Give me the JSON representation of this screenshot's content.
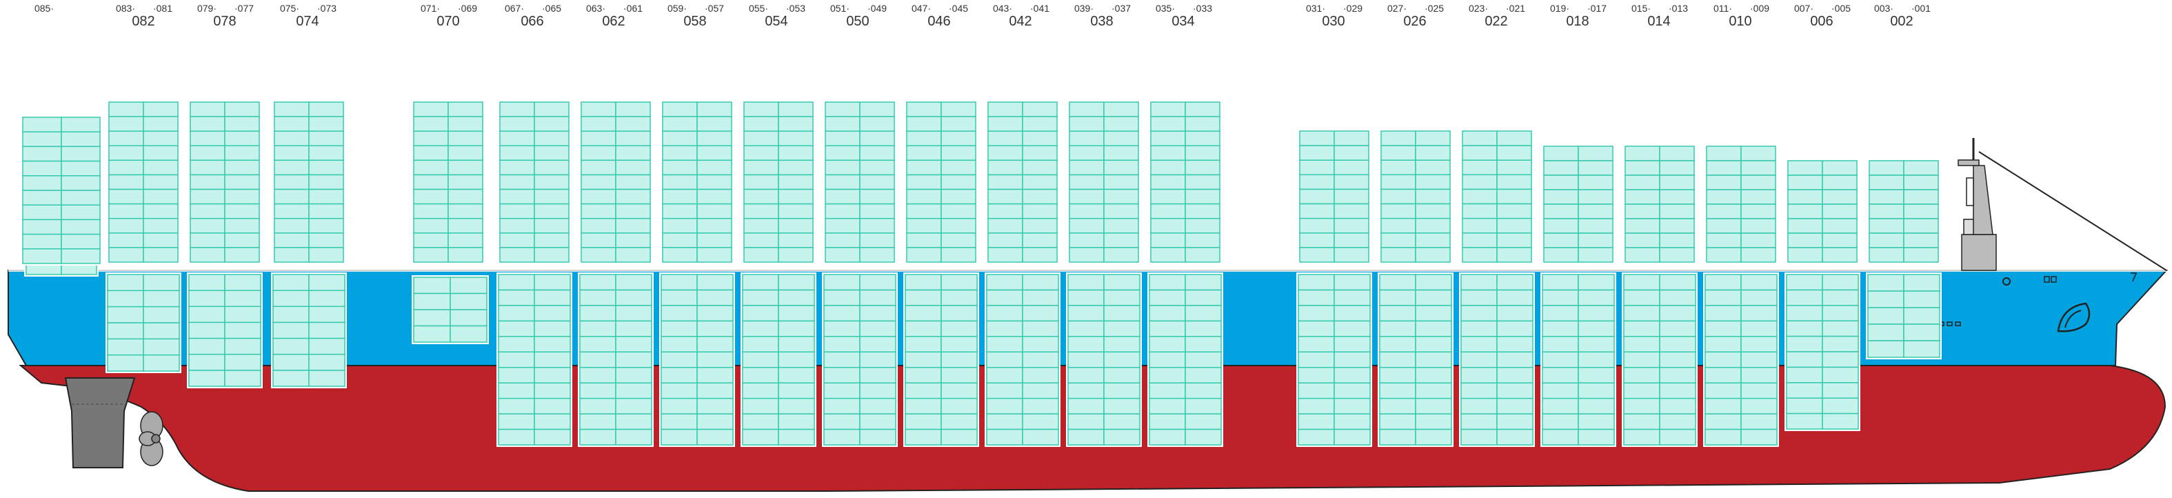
{
  "colors": {
    "hull_red": "#be2229",
    "hull_blue": "#00a3e0",
    "container_fill": "#c6f4ec",
    "container_stroke": "#36c9ad",
    "outline": "#222222",
    "prop_grey": "#888888",
    "tower_grey": "#bbbbbb"
  },
  "bays": [
    {
      "main": "",
      "sub_fwd": "085",
      "sub_aft": ""
    },
    {
      "main": "082",
      "sub_fwd": "083",
      "sub_aft": "081"
    },
    {
      "main": "078",
      "sub_fwd": "079",
      "sub_aft": "077"
    },
    {
      "main": "074",
      "sub_fwd": "075",
      "sub_aft": "073"
    },
    {
      "main": "070",
      "sub_fwd": "071",
      "sub_aft": "069"
    },
    {
      "main": "066",
      "sub_fwd": "067",
      "sub_aft": "065"
    },
    {
      "main": "062",
      "sub_fwd": "063",
      "sub_aft": "061"
    },
    {
      "main": "058",
      "sub_fwd": "059",
      "sub_aft": "057"
    },
    {
      "main": "054",
      "sub_fwd": "055",
      "sub_aft": "053"
    },
    {
      "main": "050",
      "sub_fwd": "051",
      "sub_aft": "049"
    },
    {
      "main": "046",
      "sub_fwd": "047",
      "sub_aft": "045"
    },
    {
      "main": "042",
      "sub_fwd": "043",
      "sub_aft": "041"
    },
    {
      "main": "038",
      "sub_fwd": "039",
      "sub_aft": "037"
    },
    {
      "main": "034",
      "sub_fwd": "035",
      "sub_aft": "033"
    },
    {
      "main": "030",
      "sub_fwd": "031",
      "sub_aft": "029"
    },
    {
      "main": "026",
      "sub_fwd": "027",
      "sub_aft": "025"
    },
    {
      "main": "022",
      "sub_fwd": "023",
      "sub_aft": "021"
    },
    {
      "main": "018",
      "sub_fwd": "019",
      "sub_aft": "017"
    },
    {
      "main": "014",
      "sub_fwd": "015",
      "sub_aft": "013"
    },
    {
      "main": "010",
      "sub_fwd": "011",
      "sub_aft": "009"
    },
    {
      "main": "006",
      "sub_fwd": "007",
      "sub_aft": "005"
    },
    {
      "main": "002",
      "sub_fwd": "003",
      "sub_aft": "001"
    }
  ]
}
